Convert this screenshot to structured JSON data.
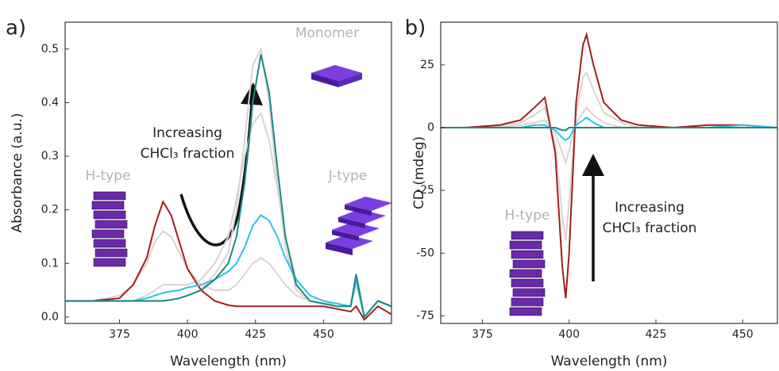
{
  "chart_data": [
    {
      "type": "line",
      "xlabel": "Wavelength (nm)",
      "ylabel": "Absorbance (a.u.)",
      "annotations": [
        "a)",
        "Monomer",
        "Increasing",
        "CHCl₃ fraction",
        "H-type",
        "J-type"
      ],
      "xlim": [
        355,
        475
      ],
      "xticks": [
        375,
        400,
        425,
        450
      ],
      "ylim": [
        -0.012,
        0.55
      ],
      "yticks": [
        {
          "value": 0,
          "label": "0.0"
        },
        0.1,
        0.2,
        0.3,
        0.4,
        0.5
      ],
      "x": [
        355,
        365,
        375,
        380,
        385,
        388,
        391,
        394,
        397,
        400,
        405,
        410,
        415,
        418,
        421,
        424,
        427,
        430,
        433,
        436,
        440,
        445,
        450,
        455,
        460,
        462,
        465,
        470,
        475
      ],
      "series": [
        {
          "color": "#d9d4d2",
          "values": [
            0.03,
            0.03,
            0.04,
            0.06,
            0.1,
            0.14,
            0.16,
            0.15,
            0.12,
            0.09,
            0.06,
            0.05,
            0.05,
            0.06,
            0.08,
            0.1,
            0.11,
            0.1,
            0.08,
            0.06,
            0.04,
            0.03,
            0.025,
            0.02,
            0.02,
            0.06,
            0,
            0.03,
            0.02
          ]
        },
        {
          "color": "#d9d4d2",
          "values": [
            0.03,
            0.03,
            0.03,
            0.03,
            0.04,
            0.05,
            0.06,
            0.06,
            0.06,
            0.06,
            0.07,
            0.1,
            0.15,
            0.22,
            0.3,
            0.36,
            0.38,
            0.33,
            0.24,
            0.15,
            0.07,
            0.04,
            0.03,
            0.02,
            0.02,
            0.07,
            0,
            0.03,
            0.02
          ]
        },
        {
          "color": "#d9d4d2",
          "values": [
            0.03,
            0.03,
            0.03,
            0.03,
            0.03,
            0.03,
            0.03,
            0.032,
            0.035,
            0.04,
            0.05,
            0.08,
            0.12,
            0.2,
            0.33,
            0.47,
            0.5,
            0.4,
            0.25,
            0.13,
            0.05,
            0.03,
            0.025,
            0.02,
            0.02,
            0.07,
            0,
            0.03,
            0.02
          ]
        },
        {
          "color": "#a31d1d",
          "values": [
            0.03,
            0.03,
            0.035,
            0.06,
            0.11,
            0.17,
            0.215,
            0.19,
            0.14,
            0.09,
            0.05,
            0.03,
            0.022,
            0.02,
            0.02,
            0.02,
            0.02,
            0.02,
            0.02,
            0.02,
            0.02,
            0.02,
            0.02,
            0.015,
            0.01,
            0.02,
            -0.005,
            0.02,
            0.005
          ]
        },
        {
          "color": "#29c5e6",
          "values": [
            0.03,
            0.03,
            0.03,
            0.03,
            0.035,
            0.04,
            0.045,
            0.048,
            0.05,
            0.055,
            0.06,
            0.07,
            0.085,
            0.1,
            0.13,
            0.17,
            0.19,
            0.18,
            0.15,
            0.11,
            0.07,
            0.04,
            0.03,
            0.025,
            0.02,
            0.07,
            0,
            0.03,
            0.02
          ]
        },
        {
          "color": "#178a84",
          "values": [
            0.03,
            0.03,
            0.03,
            0.03,
            0.03,
            0.03,
            0.03,
            0.032,
            0.035,
            0.04,
            0.05,
            0.07,
            0.1,
            0.15,
            0.25,
            0.4,
            0.49,
            0.42,
            0.28,
            0.15,
            0.06,
            0.03,
            0.025,
            0.02,
            0.02,
            0.08,
            0,
            0.03,
            0.02
          ]
        }
      ]
    },
    {
      "type": "line",
      "xlabel": "Wavelength (nm)",
      "ylabel": "CD (mdeg)",
      "annotations": [
        "b)",
        "H-type",
        "Increasing",
        "CHCl₃ fraction"
      ],
      "xlim": [
        363,
        460
      ],
      "xticks": [
        375,
        400,
        425,
        450
      ],
      "ylim": [
        -78,
        42
      ],
      "yticks": [
        -75,
        -50,
        -25,
        0,
        25
      ],
      "x": [
        363,
        370,
        380,
        386,
        390,
        393,
        396,
        398,
        399,
        400,
        402,
        404,
        405,
        407,
        410,
        415,
        420,
        430,
        440,
        450,
        460
      ],
      "series": [
        {
          "color": "#d9d4d2",
          "values": [
            0,
            0,
            0.5,
            2,
            5,
            8,
            -6,
            -35,
            -45,
            -30,
            6,
            20,
            22,
            15,
            6,
            2,
            0,
            0,
            0,
            1,
            0
          ]
        },
        {
          "color": "#d9d4d2",
          "values": [
            0,
            0,
            0,
            1,
            2,
            3,
            -2,
            -10,
            -14,
            -9,
            2,
            6,
            8,
            5,
            2,
            0,
            0,
            0,
            0,
            1,
            0
          ]
        },
        {
          "color": "#a31d1d",
          "values": [
            0,
            0,
            1,
            3,
            8,
            12,
            -10,
            -55,
            -68,
            -50,
            10,
            33,
            37,
            25,
            10,
            3,
            1,
            0,
            1,
            1,
            0
          ]
        },
        {
          "color": "#29c5e6",
          "values": [
            0,
            0,
            0,
            0,
            1,
            1,
            -1,
            -4,
            -5,
            -4,
            1,
            3,
            4,
            2,
            0,
            0,
            0,
            0,
            0,
            1,
            0
          ]
        },
        {
          "color": "#178a84",
          "values": [
            0,
            0,
            0,
            0,
            0,
            0,
            0,
            -1,
            -1,
            0,
            0,
            0,
            0,
            0,
            0,
            0,
            0,
            0,
            0,
            0,
            0
          ]
        }
      ]
    }
  ]
}
